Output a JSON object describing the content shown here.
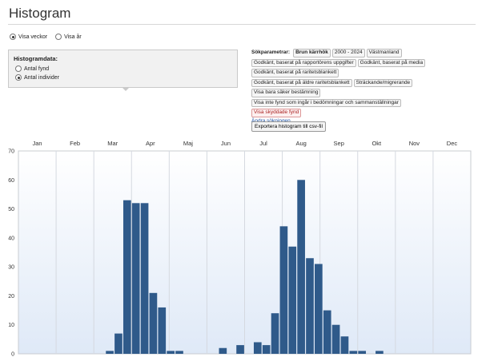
{
  "header": {
    "title": "Histogram"
  },
  "period": {
    "options": [
      {
        "label": "Visa veckor",
        "checked": true
      },
      {
        "label": "Visa år",
        "checked": false
      }
    ]
  },
  "histogram_data": {
    "title": "Histogramdata:",
    "options": [
      {
        "label": "Antal fynd",
        "checked": false
      },
      {
        "label": "Antal individer",
        "checked": true
      }
    ]
  },
  "search_params": {
    "label": "Sökparametrar:",
    "lines": [
      [
        "Brun kärrhök",
        "2000 - 2024",
        "Västmanland"
      ],
      [
        "Godkänt, baserat på rapportörens uppgifter",
        "Godkänt, baserat på media"
      ],
      [
        "Godkänt, baserat på raritetsblankett"
      ],
      [
        "Godkänt, baserat på äldre raritetsblankett",
        "Sträckande/migrerande"
      ],
      [
        "Visa bara säker bestämning"
      ],
      [
        "Visa inte fynd som ingår i bedömningar och sammanställningar"
      ],
      [
        "Visa skyddade fynd"
      ]
    ],
    "change_link": "Ändra sökningen"
  },
  "export_button": "Exportera histogram till csv-fil",
  "colors": {
    "bar": "#2f5a8a",
    "plot_bg_top": "#ffffff",
    "plot_bg_bottom": "#dfe9f7",
    "grid": "#d5d9e0"
  },
  "chart_data": {
    "type": "bar",
    "title": "",
    "xlabel": "",
    "ylabel": "",
    "months": [
      "Jan",
      "Feb",
      "Mar",
      "Apr",
      "Maj",
      "Jun",
      "Jul",
      "Aug",
      "Sep",
      "Okt",
      "Nov",
      "Dec"
    ],
    "x_unit": "week",
    "x": [
      1,
      2,
      3,
      4,
      5,
      6,
      7,
      8,
      9,
      10,
      11,
      12,
      13,
      14,
      15,
      16,
      17,
      18,
      19,
      20,
      21,
      22,
      23,
      24,
      25,
      26,
      27,
      28,
      29,
      30,
      31,
      32,
      33,
      34,
      35,
      36,
      37,
      38,
      39,
      40,
      41,
      42,
      43,
      44,
      45,
      46,
      47,
      48,
      49,
      50,
      51,
      52
    ],
    "values": [
      0,
      0,
      0,
      0,
      0,
      0,
      0,
      0,
      0,
      0,
      1,
      7,
      53,
      52,
      52,
      21,
      16,
      1,
      1,
      0,
      0,
      0,
      0,
      2,
      0,
      3,
      0,
      4,
      3,
      14,
      44,
      37,
      60,
      33,
      31,
      15,
      10,
      6,
      1,
      1,
      0,
      1,
      0,
      0,
      0,
      0,
      0,
      0,
      0,
      0,
      0,
      0
    ],
    "ylim": [
      0,
      70
    ],
    "y_ticks": [
      0,
      10,
      20,
      30,
      40,
      50,
      60,
      70
    ],
    "grid": true,
    "legend": "none"
  }
}
